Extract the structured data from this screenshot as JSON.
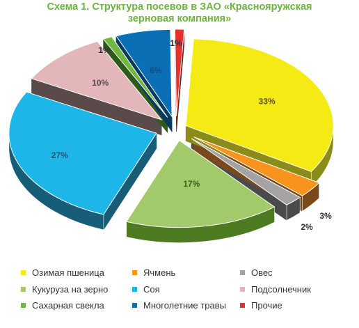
{
  "colors": {
    "title": "#6cb33f"
  },
  "chart_data": {
    "type": "pie",
    "title_lines": [
      "Схема 1. Структура посевов в ЗАО «Краснояружская",
      "зерновая компания»"
    ],
    "legend_placement": "bottom",
    "slices": [
      {
        "name": "Озимая пшеница",
        "value": 33,
        "label": "33%",
        "color": "#f5ea13",
        "dark": "#8b8b1a",
        "label_color": "#5a5a1e"
      },
      {
        "name": "Ячмень",
        "value": 3,
        "label": "3%",
        "color": "#f7941d",
        "dark": "#7a4a1d",
        "label_color": "#333333"
      },
      {
        "name": "Овес",
        "value": 2,
        "label": "2%",
        "color": "#a3a3a3",
        "dark": "#4a4a4a",
        "label_color": "#333333"
      },
      {
        "name": "Кукуруза на зерно",
        "value": 17,
        "label": "17%",
        "color": "#a2c96a",
        "dark": "#4e7a22",
        "label_color": "#3f5f1e"
      },
      {
        "name": "Соя",
        "value": 27,
        "label": "27%",
        "color": "#1eb6e8",
        "dark": "#175d78",
        "label_color": "#1c5a73"
      },
      {
        "name": "Подсолнечник",
        "value": 10,
        "label": "10%",
        "color": "#e3b6b9",
        "dark": "#5a4a4a",
        "label_color": "#5a4a4a"
      },
      {
        "name": "Сахарная свекла",
        "value": 1,
        "label": "1%",
        "color": "#6fb83f",
        "dark": "#2e5a1a",
        "label_color": "#333333"
      },
      {
        "name": "Многолетние травы",
        "value": 6,
        "label": "6%",
        "color": "#0a6fb5",
        "dark": "#0a3a5e",
        "label_color": "#0d4a7a"
      },
      {
        "name": "Прочие",
        "value": 1,
        "label": "1%",
        "color": "#e8302a",
        "dark": "#7a1a18",
        "label_color": "#333333"
      }
    ]
  }
}
